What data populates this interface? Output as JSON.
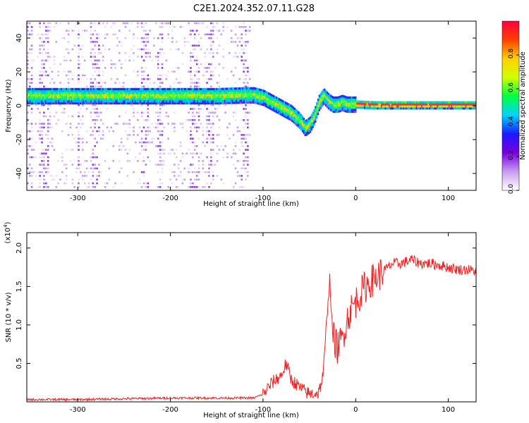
{
  "title": "C2E1.2024.352.07.11.G28",
  "chart_data": [
    {
      "type": "heatmap",
      "xlabel": "Height of straight line (km)",
      "ylabel": "Frequency (Hz)",
      "xlim": [
        -355,
        130
      ],
      "ylim": [
        -50,
        50
      ],
      "xticks": [
        -300,
        -200,
        -100,
        0,
        100
      ],
      "yticks": [
        -40,
        -20,
        0,
        20,
        40
      ],
      "colorbar": {
        "label": "Normalized spectral amplitude",
        "range": [
          0,
          1
        ],
        "ticks": [
          "0.0",
          "0.2",
          "0.4",
          "0.6",
          "0.8"
        ],
        "tick_values": [
          0.0,
          0.2,
          0.4,
          0.6,
          0.8
        ],
        "colors": [
          "#ffffff",
          "#c89cf0",
          "#7a00e0",
          "#1a1aff",
          "#00d4ff",
          "#00ff40",
          "#d0ff00",
          "#ffd000",
          "#ff4000",
          "#ff0040"
        ]
      },
      "ridge": {
        "x": [
          -355,
          -300,
          -250,
          -200,
          -150,
          -120,
          -110,
          -100,
          -90,
          -80,
          -70,
          -60,
          -55,
          -50,
          -45,
          -40,
          -35,
          -30,
          -25,
          -20,
          -15,
          -10,
          -5,
          0,
          20,
          50,
          80,
          100,
          130
        ],
        "y": [
          6,
          6,
          6,
          6,
          6,
          6.5,
          6.5,
          5,
          2,
          -1,
          -4,
          -9,
          -13,
          -11,
          -6,
          2,
          6,
          3,
          1,
          1,
          2,
          1,
          1,
          1,
          0.5,
          0.5,
          0.5,
          0.5,
          0.5
        ]
      }
    },
    {
      "type": "line",
      "xlabel": "Height of straight line (km)",
      "ylabel": "SNR (10 * v/v)",
      "y_multiplier_label": "(x10",
      "y_multiplier_exp": "4",
      "y_multiplier_close": ")",
      "xlim": [
        -355,
        130
      ],
      "ylim": [
        0,
        2.2
      ],
      "xticks": [
        -300,
        -200,
        -100,
        0,
        100
      ],
      "yticks": [
        0.5,
        1.0,
        1.5,
        2.0
      ],
      "ytick_labels": [
        "0.5",
        "1.0",
        "1.5",
        "2.0"
      ],
      "color": "#ee2222",
      "series": [
        {
          "x": [
            -355,
            -300,
            -250,
            -200,
            -150,
            -110,
            -100,
            -90,
            -80,
            -75,
            -70,
            -60,
            -50,
            -40,
            -35,
            -30,
            -28,
            -25,
            -20,
            -15,
            -10,
            -5,
            0,
            10,
            20,
            30,
            40,
            50,
            60,
            70,
            80,
            90,
            100,
            110,
            120,
            130
          ],
          "y": [
            0.03,
            0.03,
            0.04,
            0.05,
            0.05,
            0.05,
            0.1,
            0.25,
            0.35,
            0.5,
            0.3,
            0.18,
            0.1,
            0.12,
            0.35,
            1.3,
            1.6,
            0.9,
            0.7,
            0.8,
            1.05,
            1.2,
            1.3,
            1.5,
            1.6,
            1.7,
            1.8,
            1.8,
            1.85,
            1.8,
            1.8,
            1.78,
            1.75,
            1.72,
            1.72,
            1.7
          ]
        }
      ]
    }
  ]
}
